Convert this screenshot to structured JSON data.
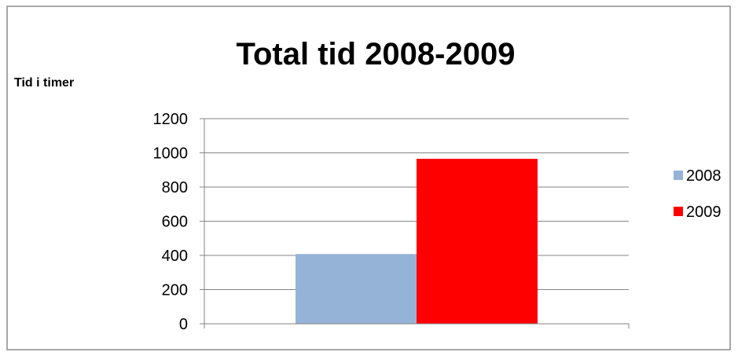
{
  "chart_data": {
    "type": "bar",
    "title": "Total tid 2008-2009",
    "xlabel": "",
    "ylabel": "Tid i timer",
    "ylim": [
      0,
      1200
    ],
    "yticks": [
      0,
      200,
      400,
      600,
      800,
      1000,
      1200
    ],
    "grid": true,
    "legend_position": "right",
    "series": [
      {
        "name": "2008",
        "values": [
          408
        ],
        "color": "#95B3D7"
      },
      {
        "name": "2009",
        "values": [
          965
        ],
        "color": "#FF0000"
      }
    ]
  }
}
